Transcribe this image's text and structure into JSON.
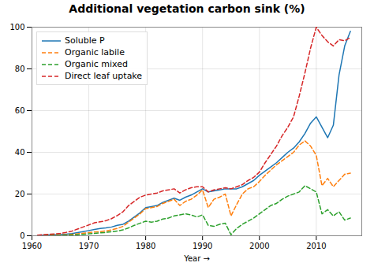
{
  "chart_data": {
    "type": "line",
    "title": "Additional vegetation carbon sink (%)",
    "xlabel": "Year",
    "x": [
      1961,
      1962,
      1963,
      1964,
      1965,
      1966,
      1967,
      1968,
      1969,
      1970,
      1971,
      1972,
      1973,
      1974,
      1975,
      1976,
      1977,
      1978,
      1979,
      1980,
      1981,
      1982,
      1983,
      1984,
      1985,
      1986,
      1987,
      1988,
      1989,
      1990,
      1991,
      1992,
      1993,
      1994,
      1995,
      1996,
      1997,
      1998,
      1999,
      2000,
      2001,
      2002,
      2003,
      2004,
      2005,
      2006,
      2007,
      2008,
      2009,
      2010,
      2011,
      2012,
      2013,
      2014,
      2015,
      2016
    ],
    "xlim": [
      1960,
      2018
    ],
    "ylim": [
      0,
      100
    ],
    "xticks": [
      1960,
      1970,
      1980,
      1990,
      2000,
      2010
    ],
    "yticks": [
      0,
      20,
      40,
      60,
      80,
      100
    ],
    "grid": true,
    "legend": "upper left",
    "series": [
      {
        "name": "Soluble P",
        "color": "#1f77b4",
        "line_style": "solid",
        "values": [
          0.2,
          0.3,
          0.4,
          0.5,
          0.6,
          0.8,
          1.0,
          1.5,
          2.0,
          2.5,
          3.0,
          3.5,
          3.8,
          4.2,
          5.0,
          5.5,
          7.0,
          9.0,
          11.0,
          13.5,
          14.0,
          14.5,
          16.0,
          17.0,
          18.0,
          17.0,
          18.5,
          19.5,
          21.0,
          22.5,
          21.0,
          21.5,
          22.0,
          22.5,
          22.5,
          22.5,
          23.5,
          25.0,
          26.5,
          29.0,
          31.0,
          33.0,
          35.0,
          37.5,
          40.0,
          42.0,
          45.0,
          49.0,
          54.0,
          57.0,
          52.0,
          47.0,
          53.0,
          77.0,
          91.0,
          98.0
        ]
      },
      {
        "name": "Organic labile",
        "color": "#ff7f0e",
        "line_style": "dashed",
        "values": [
          0.1,
          0.1,
          0.2,
          0.3,
          0.4,
          0.5,
          0.7,
          0.9,
          1.2,
          1.5,
          1.8,
          2.0,
          2.3,
          2.8,
          3.5,
          4.5,
          6.5,
          8.5,
          10.5,
          13.0,
          13.5,
          14.0,
          15.5,
          16.5,
          17.5,
          14.5,
          16.5,
          17.5,
          19.5,
          22.0,
          13.5,
          17.5,
          18.5,
          20.0,
          9.5,
          15.0,
          20.0,
          22.5,
          23.5,
          26.0,
          29.0,
          31.5,
          34.0,
          36.0,
          38.0,
          40.0,
          43.5,
          45.5,
          43.0,
          38.5,
          24.0,
          27.5,
          23.5,
          26.5,
          29.5,
          30.0
        ]
      },
      {
        "name": "Organic mixed",
        "color": "#2ca02c",
        "line_style": "dashed",
        "values": [
          0.0,
          0.1,
          0.1,
          0.2,
          0.2,
          0.3,
          0.4,
          0.5,
          0.7,
          0.9,
          1.1,
          1.4,
          1.6,
          1.9,
          2.3,
          2.8,
          3.8,
          5.0,
          6.0,
          7.0,
          6.5,
          7.0,
          8.0,
          8.5,
          9.5,
          10.0,
          10.5,
          10.0,
          9.0,
          10.0,
          5.0,
          4.5,
          5.5,
          6.0,
          0.5,
          3.5,
          5.5,
          7.0,
          8.5,
          10.5,
          12.5,
          14.5,
          15.5,
          17.5,
          19.0,
          20.0,
          21.0,
          24.0,
          22.5,
          21.0,
          10.5,
          12.5,
          9.5,
          11.5,
          7.5,
          8.5
        ]
      },
      {
        "name": "Direct leaf uptake",
        "color": "#d62728",
        "line_style": "dashed",
        "values": [
          0.3,
          0.5,
          0.7,
          0.9,
          1.1,
          1.6,
          2.2,
          3.2,
          4.2,
          5.2,
          6.2,
          6.7,
          7.2,
          8.2,
          9.7,
          11.5,
          14.5,
          16.5,
          18.5,
          19.5,
          20.0,
          20.5,
          21.5,
          22.0,
          22.5,
          20.5,
          22.0,
          23.0,
          23.5,
          23.5,
          21.0,
          22.0,
          22.5,
          23.0,
          22.5,
          23.5,
          24.5,
          26.5,
          28.0,
          30.5,
          35.0,
          39.0,
          43.0,
          48.0,
          52.0,
          57.0,
          67.0,
          78.0,
          90.0,
          100.0,
          96.0,
          93.0,
          91.0,
          94.0,
          93.5,
          95.0
        ]
      }
    ]
  }
}
